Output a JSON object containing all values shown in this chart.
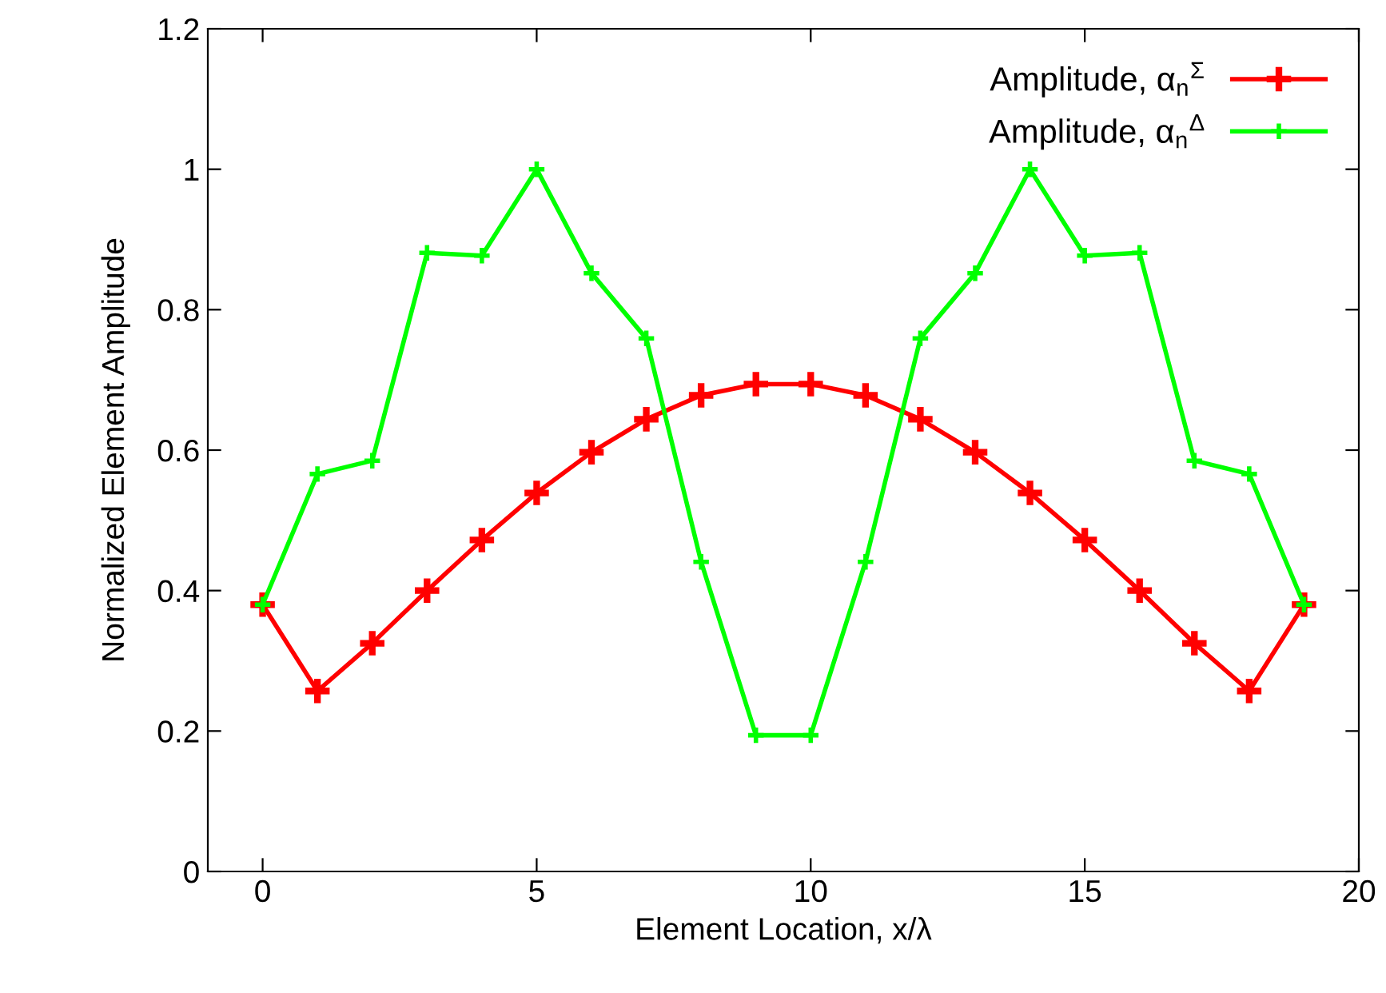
{
  "chart_data": {
    "type": "line",
    "xlabel": "Element Location, x/λ",
    "ylabel": "Normalized Element Amplitude",
    "x": [
      0,
      1,
      2,
      3,
      4,
      5,
      6,
      7,
      8,
      9,
      10,
      11,
      12,
      13,
      14,
      15,
      16,
      17,
      18,
      19
    ],
    "series": [
      {
        "name": "Amplitude, α$_{n}$$^{Σ}$",
        "color": "#ff0000",
        "values": [
          0.38,
          0.257,
          0.325,
          0.4,
          0.472,
          0.539,
          0.597,
          0.644,
          0.678,
          0.694,
          0.694,
          0.678,
          0.644,
          0.597,
          0.539,
          0.472,
          0.4,
          0.325,
          0.257,
          0.38
        ]
      },
      {
        "name": "Amplitude, α$_{n}$$^{Δ}$",
        "color": "#00ff00",
        "values": [
          0.38,
          0.566,
          0.585,
          0.881,
          0.877,
          1.0,
          0.852,
          0.759,
          0.441,
          0.194,
          0.194,
          0.441,
          0.759,
          0.852,
          1.0,
          0.877,
          0.881,
          0.585,
          0.566,
          0.38
        ]
      }
    ],
    "xlim": [
      -1,
      20
    ],
    "xticks": [
      0,
      5,
      10,
      15,
      20
    ],
    "ylim": [
      0,
      1.2
    ],
    "yticks": [
      0,
      0.2,
      0.4,
      0.6,
      0.8,
      1,
      1.2
    ],
    "marker": "cross",
    "line_style": "solid",
    "legend": "top right",
    "grid": false
  }
}
